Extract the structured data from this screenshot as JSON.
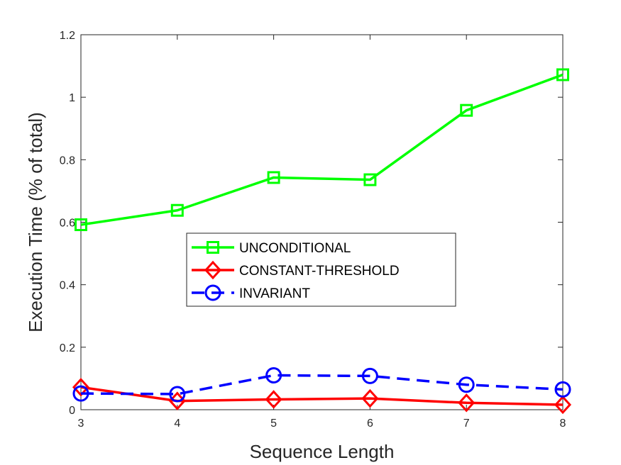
{
  "chart_data": {
    "type": "line",
    "xlabel": "Sequence Length",
    "ylabel": "Execution Time (% of total)",
    "xlim": [
      3,
      8
    ],
    "ylim": [
      0,
      1.2
    ],
    "x_ticks": [
      "3",
      "4",
      "5",
      "6",
      "7",
      "8"
    ],
    "y_ticks": [
      "0",
      "0.2",
      "0.4",
      "0.6",
      "0.8",
      "1",
      "1.2"
    ],
    "x": [
      3,
      4,
      5,
      6,
      7,
      8
    ],
    "grid": false,
    "legend_position": "center-left",
    "series": [
      {
        "name": "UNCONDITIONAL",
        "values": [
          0.592,
          0.638,
          0.743,
          0.736,
          0.958,
          1.072
        ],
        "color": "#00ff00",
        "marker": "square",
        "line_style": "solid"
      },
      {
        "name": "CONSTANT-THRESHOLD",
        "values": [
          0.072,
          0.028,
          0.033,
          0.036,
          0.022,
          0.016
        ],
        "color": "#ff0000",
        "marker": "diamond",
        "line_style": "solid"
      },
      {
        "name": "INVARIANT",
        "values": [
          0.052,
          0.05,
          0.11,
          0.108,
          0.08,
          0.065
        ],
        "color": "#0000ff",
        "marker": "circle",
        "line_style": "dashed"
      }
    ]
  }
}
